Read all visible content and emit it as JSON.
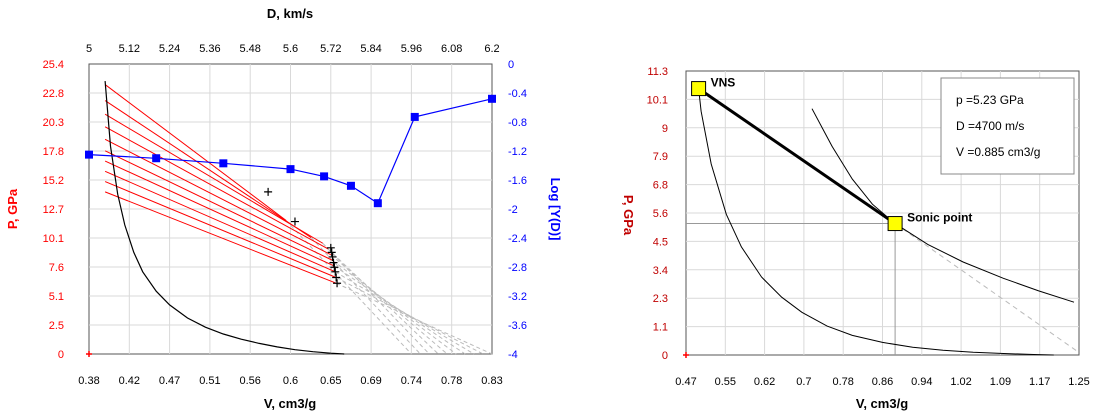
{
  "colors": {
    "red": "#ff0000",
    "blue": "#0000ff",
    "black": "#000000",
    "frame": "#555555",
    "grid": "#d9d9d9",
    "marker_fill": "#ffff00",
    "ray_grey": "#bbbbbb"
  },
  "chart_data": [
    {
      "type": "line",
      "grid": true,
      "xlabel": "V, cm3/g",
      "ylabel": "P, GPa",
      "top_xlabel": "D, km/s",
      "right_ylabel": "Log [Y(D)]",
      "xlim": [
        0.38,
        0.83
      ],
      "ylim": [
        0,
        25.4
      ],
      "top_xlim": [
        5,
        6.2
      ],
      "right_ylim": [
        -4,
        0
      ],
      "x_ticks": [
        "0.38",
        "0.42",
        "0.47",
        "0.51",
        "0.56",
        "0.6",
        "0.65",
        "0.69",
        "0.74",
        "0.78",
        "0.83"
      ],
      "y_ticks": [
        "0",
        "2.5",
        "5.1",
        "7.6",
        "10.1",
        "12.7",
        "15.2",
        "17.8",
        "20.3",
        "22.8",
        "25.4"
      ],
      "top_x_ticks": [
        "5",
        "5.12",
        "5.24",
        "5.36",
        "5.48",
        "5.6",
        "5.72",
        "5.84",
        "5.96",
        "6.08",
        "6.2"
      ],
      "right_y_ticks": [
        "0",
        "-0.4",
        "-0.8",
        "-1.2",
        "-1.6",
        "-2",
        "-2.4",
        "-2.8",
        "-3.2",
        "-3.6",
        "-4"
      ],
      "series": [
        {
          "kind": "curve",
          "color": "black",
          "axis": "main",
          "x": [
            0.398,
            0.404,
            0.412,
            0.42,
            0.43,
            0.44,
            0.455,
            0.47,
            0.49,
            0.51,
            0.53,
            0.55,
            0.57,
            0.59,
            0.61,
            0.63,
            0.65,
            0.665
          ],
          "y": [
            23.9,
            18.2,
            14.0,
            11.3,
            8.9,
            7.2,
            5.5,
            4.3,
            3.15,
            2.35,
            1.75,
            1.3,
            0.93,
            0.62,
            0.38,
            0.2,
            0.07,
            0.0
          ]
        },
        {
          "kind": "rays",
          "color": "red",
          "axis": "main",
          "start_x": 0.398,
          "start_y": [
            23.6,
            22.2,
            21.0,
            19.9,
            18.8,
            17.8,
            16.9,
            16.0,
            15.1,
            14.2
          ],
          "end_x": [
            0.6,
            0.628,
            0.641,
            0.647,
            0.65,
            0.652,
            0.654,
            0.655,
            0.656,
            0.656
          ],
          "end_y": [
            11.7,
            10.2,
            9.7,
            9.2,
            8.7,
            8.2,
            7.7,
            7.2,
            6.7,
            6.2
          ]
        },
        {
          "kind": "points",
          "marker": "plus",
          "color": "black",
          "axis": "main",
          "x": [
            0.58,
            0.61,
            0.65,
            0.651,
            0.652,
            0.653,
            0.654,
            0.655,
            0.656,
            0.657
          ],
          "y": [
            14.2,
            11.6,
            9.3,
            8.9,
            8.5,
            8.0,
            7.6,
            7.2,
            6.7,
            6.2
          ]
        },
        {
          "kind": "dashed-extensions",
          "color": "ray_grey",
          "axis": "main",
          "end_x": 0.83,
          "end_y": 0
        },
        {
          "kind": "line-markers",
          "color": "blue",
          "axis": "secondary",
          "x": [
            5.0,
            5.2,
            5.4,
            5.6,
            5.7,
            5.78,
            5.86,
            5.97,
            6.2
          ],
          "y": [
            -1.25,
            -1.3,
            -1.37,
            -1.45,
            -1.55,
            -1.68,
            -1.92,
            -0.73,
            -0.48
          ]
        }
      ]
    },
    {
      "type": "line",
      "grid": true,
      "xlabel": "V, cm3/g",
      "ylabel": "P, GPa",
      "xlim": [
        0.47,
        1.25
      ],
      "ylim": [
        0,
        11.3
      ],
      "x_ticks": [
        "0.47",
        "0.55",
        "0.62",
        "0.7",
        "0.78",
        "0.86",
        "0.94",
        "1.02",
        "1.09",
        "1.17",
        "1.25"
      ],
      "y_ticks": [
        "0",
        "1.1",
        "2.3",
        "3.4",
        "4.5",
        "5.6",
        "6.8",
        "7.9",
        "9",
        "10.1",
        "11.3"
      ],
      "annotations": {
        "p": "p =5.23  GPa",
        "D": "D =4700  m/s",
        "V": "V =0.885  cm3/g"
      },
      "points": [
        {
          "label": "VNS",
          "x": 0.495,
          "y": 10.6
        },
        {
          "label": "Sonic point",
          "x": 0.885,
          "y": 5.23
        }
      ],
      "series": [
        {
          "kind": "curve",
          "color": "black",
          "x": [
            0.495,
            0.5,
            0.52,
            0.55,
            0.58,
            0.62,
            0.66,
            0.7,
            0.75,
            0.8,
            0.86,
            0.92,
            0.98,
            1.04,
            1.1,
            1.16,
            1.2
          ],
          "y": [
            10.6,
            9.7,
            7.6,
            5.6,
            4.3,
            3.1,
            2.3,
            1.7,
            1.15,
            0.78,
            0.5,
            0.31,
            0.19,
            0.11,
            0.06,
            0.02,
            0.0
          ]
        },
        {
          "kind": "curve",
          "color": "black",
          "x": [
            0.72,
            0.76,
            0.8,
            0.84,
            0.885,
            0.95,
            1.02,
            1.1,
            1.17,
            1.24
          ],
          "y": [
            9.8,
            8.3,
            7.0,
            6.0,
            5.23,
            4.4,
            3.7,
            3.05,
            2.55,
            2.1
          ]
        },
        {
          "kind": "rayleigh-line",
          "color": "black",
          "x": [
            0.495,
            0.885
          ],
          "y": [
            10.6,
            5.23
          ]
        },
        {
          "kind": "dashed-extension",
          "color": "ray_grey",
          "x": [
            0.885,
            1.25
          ],
          "y": [
            5.23,
            0.1
          ]
        }
      ]
    }
  ]
}
